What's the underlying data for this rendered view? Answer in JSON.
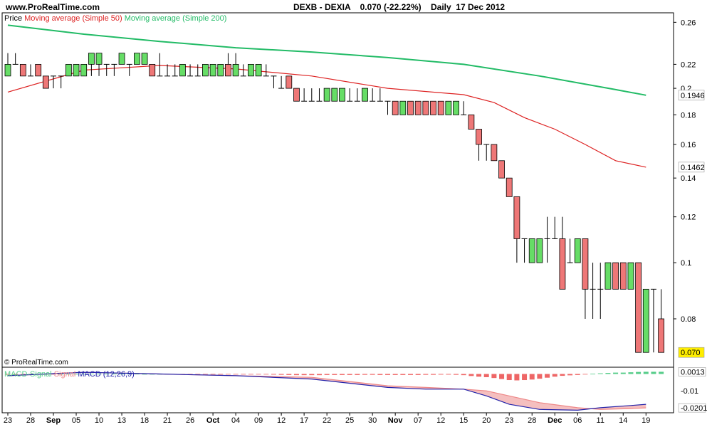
{
  "header": {
    "site": "www.ProRealTime.com",
    "ticker": "DEXB - DEXIA",
    "quote": "0.070 (-22.22%)",
    "period": "Daily  17 Dec 2012"
  },
  "colors": {
    "up": "#66dd66",
    "down": "#ee7777",
    "ma50": "#dd2222",
    "ma200": "#22bb66",
    "macd": "#2222aa",
    "signal": "#ee8888",
    "histogram_pos": "#55cc88",
    "histogram_neg": "#ee6666",
    "last_price_bg": "#ffee00"
  },
  "chart_data": [
    {
      "type": "candlestick",
      "legend": [
        {
          "name": "Price",
          "color": "#000000"
        },
        {
          "name": "Moving average (Simple 50)",
          "color": "#dd2222"
        },
        {
          "name": "Moving average (Simple 200)",
          "color": "#22bb66"
        }
      ],
      "scale": "log",
      "ylim": [
        0.066,
        0.27
      ],
      "y_ticks": [
        "0.26",
        "0.22",
        "0.2",
        "0.18",
        "0.16",
        "0.14",
        "0.12",
        "0.1",
        "0.08"
      ],
      "y_tick_values": [
        0.26,
        0.22,
        0.2,
        0.18,
        0.16,
        0.14,
        0.12,
        0.1,
        0.08
      ],
      "x_ticks": [
        "23",
        "28",
        "Sep",
        "05",
        "10",
        "13",
        "18",
        "21",
        "26",
        "Oct",
        "04",
        "09",
        "12",
        "17",
        "22",
        "25",
        "30",
        "Nov",
        "07",
        "12",
        "15",
        "20",
        "23",
        "28",
        "Dec",
        "06",
        "11",
        "14",
        "19"
      ],
      "x_tick_days": [
        0,
        3,
        6,
        9,
        12,
        15,
        18,
        21,
        24,
        27,
        30,
        33,
        36,
        39,
        42,
        45,
        48,
        51,
        54,
        57,
        60,
        63,
        66,
        69,
        72,
        75,
        78,
        81,
        84
      ],
      "candles": [
        [
          0.21,
          0.22,
          0.23,
          0.21
        ],
        [
          0.22,
          0.22,
          0.23,
          0.22
        ],
        [
          0.22,
          0.21,
          0.22,
          0.21
        ],
        [
          0.21,
          0.21,
          0.22,
          0.21
        ],
        [
          0.22,
          0.21,
          0.22,
          0.21
        ],
        [
          0.21,
          0.2,
          0.21,
          0.2
        ],
        [
          0.21,
          0.21,
          0.21,
          0.2
        ],
        [
          0.21,
          0.21,
          0.21,
          0.2
        ],
        [
          0.21,
          0.22,
          0.22,
          0.21
        ],
        [
          0.21,
          0.22,
          0.22,
          0.21
        ],
        [
          0.21,
          0.22,
          0.22,
          0.21
        ],
        [
          0.22,
          0.23,
          0.23,
          0.21
        ],
        [
          0.22,
          0.23,
          0.23,
          0.21
        ],
        [
          0.22,
          0.22,
          0.22,
          0.21
        ],
        [
          0.22,
          0.22,
          0.22,
          0.21
        ],
        [
          0.22,
          0.23,
          0.23,
          0.22
        ],
        [
          0.22,
          0.22,
          0.22,
          0.21
        ],
        [
          0.22,
          0.23,
          0.23,
          0.22
        ],
        [
          0.22,
          0.23,
          0.23,
          0.22
        ],
        [
          0.22,
          0.21,
          0.22,
          0.21
        ],
        [
          0.21,
          0.21,
          0.23,
          0.21
        ],
        [
          0.21,
          0.21,
          0.22,
          0.21
        ],
        [
          0.21,
          0.21,
          0.22,
          0.21
        ],
        [
          0.21,
          0.22,
          0.22,
          0.21
        ],
        [
          0.21,
          0.21,
          0.22,
          0.21
        ],
        [
          0.21,
          0.21,
          0.22,
          0.21
        ],
        [
          0.21,
          0.22,
          0.22,
          0.21
        ],
        [
          0.21,
          0.22,
          0.22,
          0.21
        ],
        [
          0.21,
          0.22,
          0.22,
          0.21
        ],
        [
          0.22,
          0.21,
          0.23,
          0.21
        ],
        [
          0.21,
          0.22,
          0.23,
          0.21
        ],
        [
          0.21,
          0.21,
          0.22,
          0.21
        ],
        [
          0.21,
          0.22,
          0.22,
          0.21
        ],
        [
          0.21,
          0.22,
          0.22,
          0.21
        ],
        [
          0.21,
          0.21,
          0.22,
          0.21
        ],
        [
          0.21,
          0.21,
          0.21,
          0.2
        ],
        [
          0.2,
          0.2,
          0.21,
          0.2
        ],
        [
          0.21,
          0.2,
          0.21,
          0.2
        ],
        [
          0.2,
          0.19,
          0.2,
          0.19
        ],
        [
          0.19,
          0.19,
          0.2,
          0.19
        ],
        [
          0.19,
          0.19,
          0.2,
          0.19
        ],
        [
          0.19,
          0.19,
          0.2,
          0.19
        ],
        [
          0.19,
          0.2,
          0.2,
          0.19
        ],
        [
          0.19,
          0.2,
          0.2,
          0.19
        ],
        [
          0.19,
          0.2,
          0.2,
          0.19
        ],
        [
          0.19,
          0.19,
          0.2,
          0.19
        ],
        [
          0.19,
          0.19,
          0.2,
          0.19
        ],
        [
          0.19,
          0.2,
          0.2,
          0.19
        ],
        [
          0.19,
          0.19,
          0.2,
          0.19
        ],
        [
          0.19,
          0.19,
          0.2,
          0.19
        ],
        [
          0.19,
          0.19,
          0.19,
          0.18
        ],
        [
          0.19,
          0.18,
          0.19,
          0.18
        ],
        [
          0.18,
          0.19,
          0.19,
          0.18
        ],
        [
          0.19,
          0.18,
          0.19,
          0.18
        ],
        [
          0.19,
          0.18,
          0.19,
          0.18
        ],
        [
          0.19,
          0.18,
          0.19,
          0.18
        ],
        [
          0.19,
          0.18,
          0.19,
          0.18
        ],
        [
          0.19,
          0.18,
          0.19,
          0.18
        ],
        [
          0.18,
          0.19,
          0.19,
          0.18
        ],
        [
          0.18,
          0.19,
          0.19,
          0.18
        ],
        [
          0.18,
          0.18,
          0.19,
          0.18
        ],
        [
          0.18,
          0.17,
          0.18,
          0.17
        ],
        [
          0.17,
          0.16,
          0.17,
          0.15
        ],
        [
          0.16,
          0.16,
          0.16,
          0.15
        ],
        [
          0.16,
          0.15,
          0.16,
          0.15
        ],
        [
          0.15,
          0.14,
          0.15,
          0.14
        ],
        [
          0.14,
          0.13,
          0.14,
          0.13
        ],
        [
          0.13,
          0.11,
          0.13,
          0.1
        ],
        [
          0.11,
          0.11,
          0.11,
          0.1
        ],
        [
          0.1,
          0.11,
          0.11,
          0.1
        ],
        [
          0.1,
          0.11,
          0.11,
          0.1
        ],
        [
          0.11,
          0.11,
          0.12,
          0.1
        ],
        [
          0.11,
          0.11,
          0.12,
          0.11
        ],
        [
          0.11,
          0.09,
          0.12,
          0.09
        ],
        [
          0.1,
          0.1,
          0.11,
          0.1
        ],
        [
          0.1,
          0.11,
          0.11,
          0.1
        ],
        [
          0.11,
          0.09,
          0.11,
          0.08
        ],
        [
          0.09,
          0.09,
          0.1,
          0.08
        ],
        [
          0.09,
          0.09,
          0.1,
          0.08
        ],
        [
          0.09,
          0.1,
          0.1,
          0.09
        ],
        [
          0.1,
          0.09,
          0.1,
          0.09
        ],
        [
          0.1,
          0.09,
          0.1,
          0.09
        ],
        [
          0.09,
          0.1,
          0.1,
          0.09
        ],
        [
          0.1,
          0.07,
          0.1,
          0.07
        ],
        [
          0.07,
          0.09,
          0.09,
          0.07
        ],
        [
          0.09,
          0.09,
          0.09,
          0.07
        ],
        [
          0.08,
          0.07,
          0.09,
          0.07
        ]
      ],
      "ma50": {
        "x": [
          0,
          10,
          20,
          30,
          40,
          50,
          60,
          64,
          68,
          72,
          76,
          80,
          84
        ],
        "y": [
          0.197,
          0.215,
          0.219,
          0.216,
          0.21,
          0.2,
          0.195,
          0.189,
          0.178,
          0.17,
          0.16,
          0.15,
          0.1462
        ]
      },
      "ma200": {
        "x": [
          0,
          10,
          20,
          30,
          40,
          50,
          60,
          70,
          80,
          84
        ],
        "y": [
          0.257,
          0.248,
          0.241,
          0.235,
          0.231,
          0.226,
          0.22,
          0.21,
          0.199,
          0.1946
        ]
      },
      "badges": [
        {
          "label": "0.1946",
          "value": 0.1946,
          "color": "#22bb66",
          "bg": "#ffffff"
        },
        {
          "label": "0.1462",
          "value": 0.1462,
          "color": "#dd2222",
          "bg": "#ffffff"
        },
        {
          "label": "0.070",
          "value": 0.07,
          "color": "#000000",
          "bg": "#ffee00"
        }
      ],
      "watermark": "© ProRealTime.com"
    },
    {
      "type": "macd",
      "legend": [
        {
          "name": "MACD-Signal",
          "color": "#55cc88"
        },
        {
          "name": "Signal",
          "color": "#ee8888"
        },
        {
          "name": "MACD (12,26,9)",
          "color": "#2222aa"
        }
      ],
      "ylim": [
        -0.023,
        0.004
      ],
      "y_ticks": [
        "0.0013",
        "-0.01",
        "-0.0201"
      ],
      "y_tick_values": [
        0.0013,
        -0.01,
        -0.0201
      ],
      "macd": {
        "x": [
          0,
          10,
          20,
          30,
          40,
          50,
          55,
          60,
          63,
          66,
          70,
          75,
          78,
          82,
          84
        ],
        "y": [
          -0.001,
          0.001,
          0.0,
          -0.001,
          -0.003,
          -0.008,
          -0.009,
          -0.009,
          -0.013,
          -0.018,
          -0.021,
          -0.0215,
          -0.02,
          -0.0187,
          -0.018
        ]
      },
      "signal": {
        "x": [
          0,
          10,
          20,
          30,
          40,
          50,
          55,
          60,
          63,
          66,
          70,
          75,
          78,
          82,
          84
        ],
        "y": [
          -0.001,
          0.001,
          0.0,
          -0.001,
          -0.002,
          -0.007,
          -0.008,
          -0.009,
          -0.01,
          -0.013,
          -0.017,
          -0.02,
          -0.021,
          -0.0205,
          -0.0201
        ]
      },
      "histogram": [
        -0.0004,
        -0.0004,
        -0.0003,
        -0.0002,
        -0.0002,
        -0.0001,
        -0.0001,
        0.0,
        0.0,
        0.0,
        0.0001,
        0.0001,
        0.0001,
        0.0001,
        0.0001,
        0.0001,
        0.0001,
        0.0001,
        0.0,
        0.0,
        0.0,
        0.0,
        -0.0001,
        -0.0002,
        -0.0002,
        -0.0002,
        -0.0002,
        -0.0002,
        -0.0002,
        -0.0002,
        -0.0002,
        -0.0002,
        -0.0002,
        -0.0002,
        -0.0003,
        -0.0004,
        -0.0005,
        -0.0006,
        -0.0007,
        -0.0007,
        -0.0007,
        -0.0007,
        -0.0006,
        -0.0006,
        -0.0006,
        -0.0006,
        -0.0006,
        -0.0005,
        -0.0005,
        -0.0006,
        -0.0006,
        -0.0006,
        -0.0006,
        -0.0006,
        -0.0006,
        -0.0005,
        -0.0005,
        -0.0004,
        -0.0004,
        -0.0005,
        -0.0007,
        -0.0012,
        -0.0016,
        -0.0019,
        -0.0024,
        -0.003,
        -0.0036,
        -0.0038,
        -0.0036,
        -0.0033,
        -0.0028,
        -0.0022,
        -0.0016,
        -0.0011,
        -0.0008,
        -0.0006,
        -0.0003,
        0.0001,
        0.0004,
        0.0006,
        0.0008,
        0.0008,
        0.001,
        0.0012,
        0.0013,
        0.0013,
        0.0013
      ]
    }
  ]
}
